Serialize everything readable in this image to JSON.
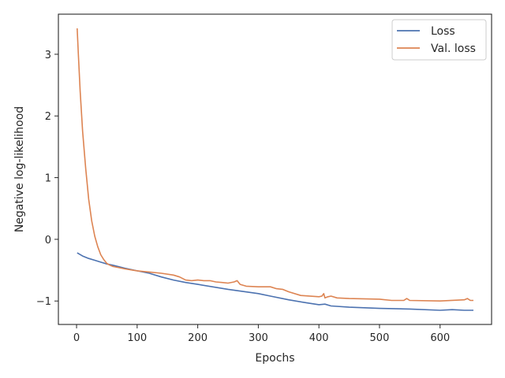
{
  "chart_data": {
    "type": "line",
    "title": "",
    "xlabel": "Epochs",
    "ylabel": "Negative log-likelihood",
    "xlim": [
      -30,
      685
    ],
    "ylim": [
      -1.38,
      3.65
    ],
    "x_ticks": [
      0,
      100,
      200,
      300,
      400,
      500,
      600
    ],
    "x_tick_labels": [
      "0",
      "100",
      "200",
      "300",
      "400",
      "500",
      "600"
    ],
    "y_ticks": [
      -1,
      0,
      1,
      2,
      3
    ],
    "y_tick_labels": [
      "−1",
      "0",
      "1",
      "2",
      "3"
    ],
    "grid": false,
    "legend": {
      "placement": "top-right",
      "entries": [
        "Loss",
        "Val. loss"
      ]
    },
    "series": [
      {
        "name": "Loss",
        "color": "#4c72b0",
        "x": [
          1,
          10,
          20,
          30,
          40,
          50,
          60,
          80,
          100,
          120,
          140,
          160,
          180,
          200,
          250,
          300,
          320,
          350,
          380,
          400,
          410,
          420,
          450,
          500,
          550,
          600,
          620,
          640,
          655
        ],
        "y": [
          -0.22,
          -0.27,
          -0.31,
          -0.34,
          -0.37,
          -0.4,
          -0.42,
          -0.47,
          -0.51,
          -0.55,
          -0.61,
          -0.66,
          -0.7,
          -0.73,
          -0.81,
          -0.88,
          -0.92,
          -0.98,
          -1.03,
          -1.06,
          -1.05,
          -1.08,
          -1.1,
          -1.12,
          -1.13,
          -1.15,
          -1.14,
          -1.15,
          -1.15
        ]
      },
      {
        "name": "Val. loss",
        "color": "#dd8452",
        "x": [
          1,
          3,
          6,
          10,
          15,
          20,
          25,
          30,
          35,
          40,
          45,
          50,
          55,
          60,
          70,
          80,
          100,
          120,
          140,
          160,
          170,
          180,
          190,
          200,
          210,
          220,
          230,
          240,
          250,
          260,
          265,
          270,
          280,
          300,
          320,
          330,
          340,
          350,
          370,
          400,
          405,
          408,
          410,
          415,
          420,
          430,
          450,
          500,
          520,
          540,
          545,
          550,
          600,
          640,
          645,
          650,
          655
        ],
        "y": [
          3.42,
          3.0,
          2.4,
          1.75,
          1.15,
          0.65,
          0.3,
          0.05,
          -0.12,
          -0.25,
          -0.33,
          -0.39,
          -0.42,
          -0.44,
          -0.46,
          -0.48,
          -0.51,
          -0.53,
          -0.55,
          -0.58,
          -0.61,
          -0.66,
          -0.67,
          -0.66,
          -0.67,
          -0.67,
          -0.69,
          -0.7,
          -0.71,
          -0.69,
          -0.67,
          -0.73,
          -0.76,
          -0.77,
          -0.77,
          -0.8,
          -0.81,
          -0.85,
          -0.91,
          -0.93,
          -0.92,
          -0.88,
          -0.95,
          -0.93,
          -0.92,
          -0.95,
          -0.96,
          -0.97,
          -0.99,
          -0.99,
          -0.96,
          -0.99,
          -1.0,
          -0.98,
          -0.96,
          -0.99,
          -0.99
        ]
      }
    ]
  }
}
